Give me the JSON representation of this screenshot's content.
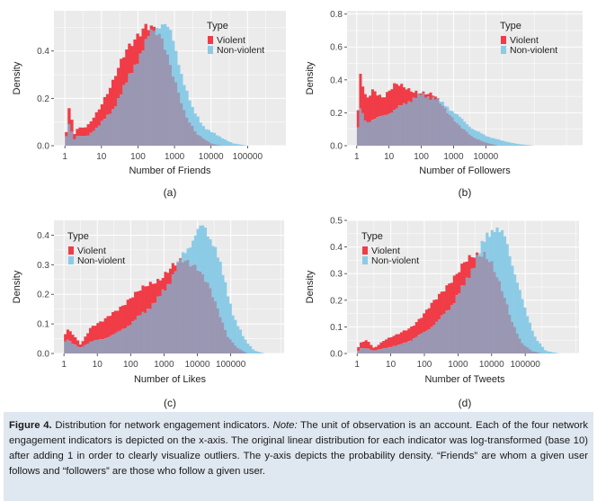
{
  "figure": {
    "caption_label": "Figure 4.",
    "caption_text_1": " Distribution for network engagement indicators. ",
    "caption_note": "Note:",
    "caption_text_2": " The unit of observation is an account. Each of the four network engagement indicators is depicted on the x-axis. The original linear distribution for each indicator was log-transformed (base 10) after adding 1 in order to clearly visualize outliers. The y-axis depicts the probability density. “Friends” are whom a given user follows and “followers” are those who follow a given user."
  },
  "colors": {
    "violent": "#f03c46",
    "non_violent": "#8ccbe6",
    "overlap": "#9a97b3",
    "panel_bg": "#ebebeb",
    "grid": "#ffffff"
  },
  "chart_data": [
    {
      "type": "histogram",
      "panel_label": "(a)",
      "xlabel": "Number of Friends",
      "ylabel": "Density",
      "x_scale": "log10(x+1)",
      "xlim": [
        -0.3,
        6.05
      ],
      "ylim": [
        0,
        0.57
      ],
      "x_ticks": [
        "1",
        "10",
        "100",
        "1000",
        "10000",
        "100000"
      ],
      "y_ticks": [
        "0.0",
        "0.2",
        "0.4"
      ],
      "legend": {
        "title": "Type",
        "entries": [
          "Violent",
          "Non-violent"
        ],
        "position": "top-right"
      },
      "series": [
        {
          "name": "Violent",
          "knots": [
            [
              0,
              0.2
            ],
            [
              0.05,
              0.01
            ],
            [
              0.1,
              0.17
            ],
            [
              0.3,
              0.02
            ],
            [
              0.33,
              0.07
            ],
            [
              0.6,
              0.08
            ],
            [
              0.9,
              0.15
            ],
            [
              1.3,
              0.26
            ],
            [
              1.7,
              0.41
            ],
            [
              2.0,
              0.48
            ],
            [
              2.2,
              0.51
            ],
            [
              2.4,
              0.49
            ],
            [
              2.7,
              0.43
            ],
            [
              3.0,
              0.29
            ],
            [
              3.3,
              0.13
            ],
            [
              3.6,
              0.05
            ],
            [
              4.0,
              0.01
            ],
            [
              4.3,
              0.0
            ]
          ]
        },
        {
          "name": "Non-violent",
          "knots": [
            [
              0,
              0.13
            ],
            [
              0.05,
              0.01
            ],
            [
              0.1,
              0.1
            ],
            [
              0.3,
              0.01
            ],
            [
              0.33,
              0.04
            ],
            [
              0.6,
              0.04
            ],
            [
              0.9,
              0.08
            ],
            [
              1.3,
              0.15
            ],
            [
              1.7,
              0.27
            ],
            [
              2.0,
              0.37
            ],
            [
              2.3,
              0.46
            ],
            [
              2.5,
              0.5
            ],
            [
              2.7,
              0.53
            ],
            [
              2.9,
              0.47
            ],
            [
              3.2,
              0.3
            ],
            [
              3.5,
              0.15
            ],
            [
              3.8,
              0.08
            ],
            [
              4.2,
              0.04
            ],
            [
              4.6,
              0.01
            ],
            [
              5.0,
              0.0
            ]
          ]
        }
      ]
    },
    {
      "type": "histogram",
      "panel_label": "(b)",
      "xlabel": "Number of Followers",
      "ylabel": "Density",
      "x_scale": "log10(x+1)",
      "xlim": [
        -0.3,
        7.0
      ],
      "ylim": [
        0,
        0.82
      ],
      "x_ticks": [
        "1",
        "10",
        "100",
        "1000",
        "10000"
      ],
      "y_ticks": [
        "0.0",
        "0.2",
        "0.4",
        "0.6",
        "0.8"
      ],
      "legend": {
        "title": "Type",
        "entries": [
          "Violent",
          "Non-violent"
        ],
        "position": "top-right"
      },
      "series": [
        {
          "name": "Violent",
          "knots": [
            [
              0,
              0.78
            ],
            [
              0.05,
              0.02
            ],
            [
              0.1,
              0.43
            ],
            [
              0.3,
              0.27
            ],
            [
              0.5,
              0.34
            ],
            [
              0.8,
              0.3
            ],
            [
              1.2,
              0.37
            ],
            [
              1.6,
              0.34
            ],
            [
              2.0,
              0.33
            ],
            [
              2.4,
              0.3
            ],
            [
              2.8,
              0.21
            ],
            [
              3.2,
              0.12
            ],
            [
              3.6,
              0.05
            ],
            [
              4.0,
              0.02
            ],
            [
              4.4,
              0.0
            ]
          ]
        },
        {
          "name": "Non-violent",
          "knots": [
            [
              0,
              0.36
            ],
            [
              0.05,
              0.02
            ],
            [
              0.1,
              0.23
            ],
            [
              0.3,
              0.14
            ],
            [
              0.5,
              0.16
            ],
            [
              0.8,
              0.18
            ],
            [
              1.2,
              0.22
            ],
            [
              1.6,
              0.27
            ],
            [
              2.0,
              0.31
            ],
            [
              2.4,
              0.29
            ],
            [
              2.8,
              0.24
            ],
            [
              3.2,
              0.17
            ],
            [
              3.6,
              0.1
            ],
            [
              4.0,
              0.06
            ],
            [
              4.5,
              0.03
            ],
            [
              5.0,
              0.01
            ],
            [
              5.5,
              0.0
            ]
          ]
        }
      ]
    },
    {
      "type": "histogram",
      "panel_label": "(c)",
      "xlabel": "Number of Likes",
      "ylabel": "Density",
      "x_scale": "log10(x+1)",
      "xlim": [
        -0.3,
        6.6
      ],
      "ylim": [
        0,
        0.45
      ],
      "x_ticks": [
        "1",
        "10",
        "100",
        "1000",
        "10000",
        "100000"
      ],
      "y_ticks": [
        "0.0",
        "0.1",
        "0.2",
        "0.3",
        "0.4"
      ],
      "legend": {
        "title": "Type",
        "entries": [
          "Violent",
          "Non-violent"
        ],
        "position": "top-left"
      },
      "series": [
        {
          "name": "Violent",
          "knots": [
            [
              0,
              0.23
            ],
            [
              0.05,
              0.01
            ],
            [
              0.1,
              0.08
            ],
            [
              0.3,
              0.06
            ],
            [
              0.5,
              0.03
            ],
            [
              0.8,
              0.09
            ],
            [
              1.2,
              0.11
            ],
            [
              1.6,
              0.15
            ],
            [
              2.0,
              0.19
            ],
            [
              2.4,
              0.22
            ],
            [
              2.8,
              0.25
            ],
            [
              3.2,
              0.29
            ],
            [
              3.6,
              0.31
            ],
            [
              4.0,
              0.3
            ],
            [
              4.3,
              0.24
            ],
            [
              4.6,
              0.15
            ],
            [
              4.9,
              0.06
            ],
            [
              5.2,
              0.02
            ],
            [
              5.5,
              0.0
            ]
          ]
        },
        {
          "name": "Non-violent",
          "knots": [
            [
              0,
              0.13
            ],
            [
              0.05,
              0.01
            ],
            [
              0.1,
              0.05
            ],
            [
              0.3,
              0.03
            ],
            [
              0.5,
              0.02
            ],
            [
              0.8,
              0.04
            ],
            [
              1.2,
              0.05
            ],
            [
              1.6,
              0.07
            ],
            [
              2.0,
              0.1
            ],
            [
              2.4,
              0.14
            ],
            [
              2.8,
              0.18
            ],
            [
              3.2,
              0.25
            ],
            [
              3.6,
              0.34
            ],
            [
              4.0,
              0.41
            ],
            [
              4.2,
              0.43
            ],
            [
              4.5,
              0.37
            ],
            [
              4.8,
              0.25
            ],
            [
              5.1,
              0.12
            ],
            [
              5.4,
              0.05
            ],
            [
              5.7,
              0.01
            ],
            [
              6.0,
              0.0
            ]
          ]
        }
      ]
    },
    {
      "type": "histogram",
      "panel_label": "(d)",
      "xlabel": "Number of Tweets",
      "ylabel": "Density",
      "x_scale": "log10(x+1)",
      "xlim": [
        -0.3,
        6.6
      ],
      "ylim": [
        0,
        0.5
      ],
      "x_ticks": [
        "1",
        "10",
        "100",
        "1000",
        "10000",
        "100000"
      ],
      "y_ticks": [
        "0.0",
        "0.1",
        "0.2",
        "0.3",
        "0.4",
        "0.5"
      ],
      "legend": {
        "title": "Type",
        "entries": [
          "Violent",
          "Non-violent"
        ],
        "position": "top-left"
      },
      "series": [
        {
          "name": "Violent",
          "knots": [
            [
              0,
              0.06
            ],
            [
              0.05,
              0.01
            ],
            [
              0.1,
              0.04
            ],
            [
              0.3,
              0.05
            ],
            [
              0.5,
              0.02
            ],
            [
              0.8,
              0.05
            ],
            [
              1.2,
              0.07
            ],
            [
              1.6,
              0.1
            ],
            [
              2.0,
              0.15
            ],
            [
              2.4,
              0.21
            ],
            [
              2.8,
              0.28
            ],
            [
              3.2,
              0.34
            ],
            [
              3.5,
              0.36
            ],
            [
              3.8,
              0.38
            ],
            [
              4.0,
              0.35
            ],
            [
              4.3,
              0.24
            ],
            [
              4.6,
              0.12
            ],
            [
              4.9,
              0.04
            ],
            [
              5.2,
              0.01
            ],
            [
              5.5,
              0.0
            ]
          ]
        },
        {
          "name": "Non-violent",
          "knots": [
            [
              0,
              0.02
            ],
            [
              0.05,
              0.005
            ],
            [
              0.1,
              0.02
            ],
            [
              0.3,
              0.02
            ],
            [
              0.5,
              0.01
            ],
            [
              0.8,
              0.02
            ],
            [
              1.2,
              0.03
            ],
            [
              1.6,
              0.05
            ],
            [
              2.0,
              0.08
            ],
            [
              2.4,
              0.12
            ],
            [
              2.8,
              0.18
            ],
            [
              3.2,
              0.26
            ],
            [
              3.6,
              0.37
            ],
            [
              3.9,
              0.45
            ],
            [
              4.1,
              0.48
            ],
            [
              4.4,
              0.43
            ],
            [
              4.7,
              0.3
            ],
            [
              5.0,
              0.16
            ],
            [
              5.3,
              0.06
            ],
            [
              5.6,
              0.01
            ],
            [
              6.0,
              0.0
            ]
          ]
        }
      ]
    }
  ]
}
